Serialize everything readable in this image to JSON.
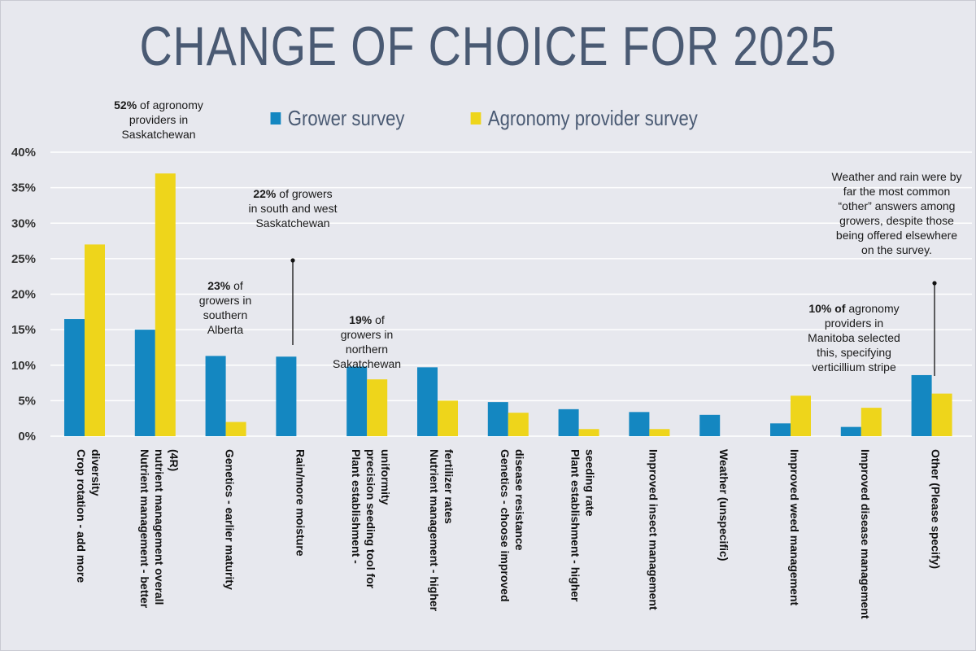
{
  "title": "CHANGE OF CHOICE FOR 2025",
  "legend": {
    "grower_label": "Grower survey",
    "provider_label": "Agronomy provider survey"
  },
  "colors": {
    "grower": "#1487c1",
    "provider": "#eed51b",
    "title": "#4a5a73",
    "grid": "#ffffff",
    "background": "#e7e8ee"
  },
  "annotations": [
    {
      "bold": "52%",
      "text": " of agronomy providers in Saskatchewan"
    },
    {
      "bold": "23%",
      "text": " of growers in southern Alberta"
    },
    {
      "bold": "22%",
      "text": " of growers in south and west Saskatchewan"
    },
    {
      "bold": "19%",
      "text": " of growers in northern Sakatchewan"
    },
    {
      "bold": "10% of",
      "text": " agronomy providers in Manitoba selected this, specifying verticillium stripe"
    },
    {
      "bold": "",
      "text": "Weather and rain were by far the most common “other” answers among growers, despite those being offered elsewhere on the survey."
    }
  ],
  "chart_data": {
    "type": "bar",
    "categories": [
      "Crop rotation - add more diversity",
      "Nutrient management - better nutrient management overall (4R)",
      "Genetics - earlier maturity",
      "Rain/more moisture",
      "Plant establishment - precision seeding tool for uniformity",
      "Nutrient management - higher fertilizer rates",
      "Genetics - choose improved disease resistance",
      "Plant establishment - higher seeding rate",
      "Improved insect management",
      "Weather (unspecific)",
      "Improved weed management",
      "Improved disease management",
      "Other (Please specify)"
    ],
    "series": [
      {
        "name": "Grower survey",
        "values": [
          16.5,
          15,
          11.3,
          11.2,
          9.8,
          9.7,
          4.8,
          3.8,
          3.4,
          3.0,
          1.8,
          1.3,
          8.6
        ]
      },
      {
        "name": "Agronomy provider survey",
        "values": [
          27,
          37,
          2,
          0,
          8,
          5,
          3.3,
          1,
          1,
          0,
          5.7,
          4,
          6
        ]
      }
    ],
    "y_ticks": [
      "0%",
      "5%",
      "10%",
      "15%",
      "20%",
      "25%",
      "30%",
      "35%",
      "40%"
    ],
    "ylim": [
      0,
      40
    ],
    "grid": true,
    "legend_position": "top-center"
  }
}
